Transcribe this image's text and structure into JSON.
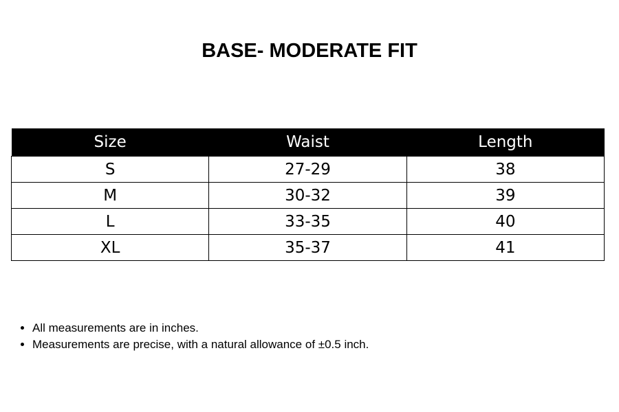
{
  "title": "BASE- MODERATE FIT",
  "table": {
    "header": [
      "Size",
      "Waist",
      "Length"
    ],
    "rows": [
      [
        "S",
        "27-29",
        "38"
      ],
      [
        "M",
        "30-32",
        "39"
      ],
      [
        "L",
        "33-35",
        "40"
      ],
      [
        "XL",
        "35-37",
        "41"
      ]
    ]
  },
  "notes": [
    "All measurements are in inches.",
    "Measurements are precise, with a natural allowance of ±0.5 inch."
  ]
}
